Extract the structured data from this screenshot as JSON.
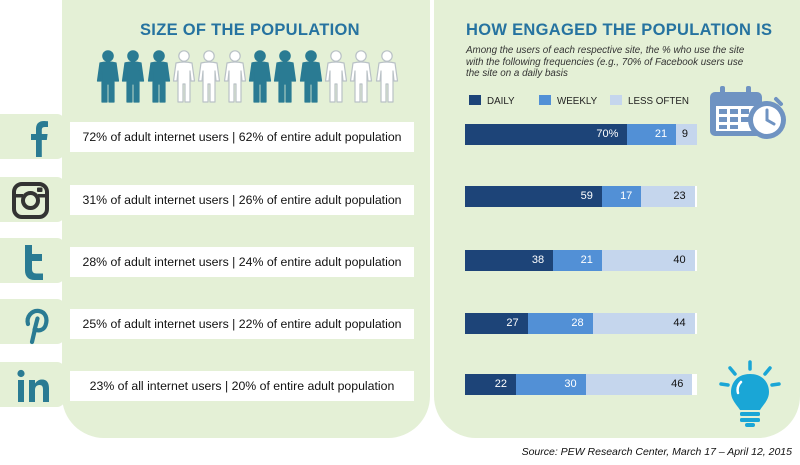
{
  "left": {
    "title": "SIZE OF THE POPULATION",
    "people_pattern": [
      "filled",
      "filled",
      "filled",
      "outline",
      "outline",
      "outline",
      "filled",
      "filled",
      "filled",
      "outline",
      "outline",
      "outline"
    ],
    "rows": [
      {
        "icon": "facebook-icon",
        "text": "72% of adult internet users | 62% of entire adult population"
      },
      {
        "icon": "instagram-icon",
        "text": "31% of adult internet users | 26% of entire adult population"
      },
      {
        "icon": "twitter-icon",
        "text": "28% of adult internet users | 24% of entire adult population"
      },
      {
        "icon": "pinterest-icon",
        "text": "25% of adult internet users | 22% of entire adult population"
      },
      {
        "icon": "linkedin-icon",
        "text": "23% of all internet users | 20% of entire adult population"
      }
    ]
  },
  "right": {
    "title": "HOW ENGAGED THE POPULATION IS",
    "note": "Among the users of each respective site, the % who use the site with the following frequencies (e.g., 70% of Facebook users use the site on a daily basis",
    "legend": [
      {
        "label": "DAILY",
        "color": "#1d4478"
      },
      {
        "label": "WEEKLY",
        "color": "#5290d6"
      },
      {
        "label": "LESS OFTEN",
        "color": "#c5d6ed"
      }
    ],
    "decor_icons": [
      "calendar-clock-icon",
      "lightbulb-icon"
    ]
  },
  "chart_data": {
    "type": "bar",
    "stacked": true,
    "orientation": "horizontal",
    "categories": [
      "Facebook",
      "Instagram",
      "Twitter",
      "Pinterest",
      "LinkedIn"
    ],
    "series": [
      {
        "name": "DAILY",
        "values": [
          70,
          59,
          38,
          27,
          22
        ],
        "labels": [
          "70%",
          "59",
          "38",
          "27",
          "22"
        ]
      },
      {
        "name": "WEEKLY",
        "values": [
          21,
          17,
          21,
          28,
          30
        ],
        "labels": [
          "21",
          "17",
          "21",
          "28",
          "30"
        ]
      },
      {
        "name": "LESS OFTEN",
        "values": [
          9,
          23,
          40,
          44,
          46
        ],
        "labels": [
          "9",
          "23",
          "40",
          "44",
          "46"
        ]
      }
    ],
    "xlim": [
      0,
      100
    ],
    "colors": [
      "#1d4478",
      "#5290d6",
      "#c5d6ed"
    ],
    "label_colors": [
      "#ffffff",
      "#ffffff",
      "#111111"
    ],
    "legend": "top"
  },
  "source": "Source: PEW Research Center, March 17 – April 12, 2015"
}
